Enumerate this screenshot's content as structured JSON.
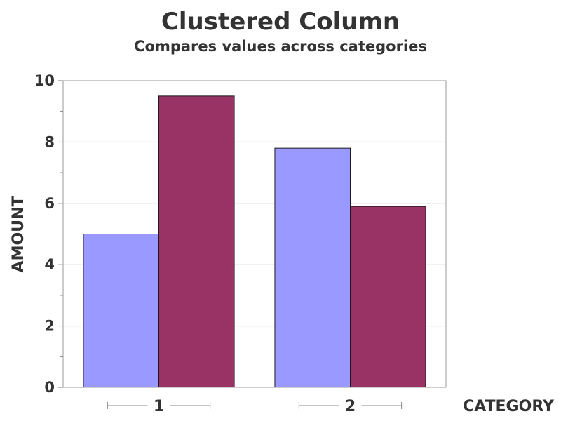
{
  "chart_data": {
    "type": "bar",
    "title": "Clustered Column",
    "subtitle": "Compares values across categories",
    "xlabel": "CATEGORY",
    "ylabel": "AMOUNT",
    "categories": [
      "1",
      "2"
    ],
    "series": [
      {
        "values": [
          5.0,
          7.8
        ],
        "color": "#9999ff"
      },
      {
        "values": [
          9.5,
          5.9
        ],
        "color": "#993366"
      }
    ],
    "ylim": [
      0,
      10
    ],
    "yticks": [
      0,
      2,
      4,
      6,
      8,
      10
    ],
    "grid": true,
    "legend": "none"
  }
}
